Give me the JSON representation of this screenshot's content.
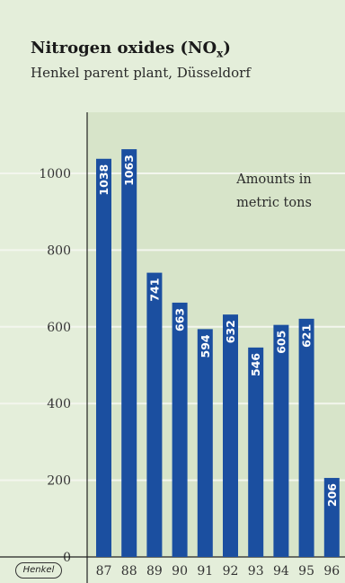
{
  "brand": {
    "logo_text": "Henkel"
  },
  "chart_data": {
    "type": "bar",
    "title": "Nitrogen oxides (NO",
    "title_subscript": "x",
    "title_close": ")",
    "subtitle": "Henkel parent plant, Düsseldorf",
    "annotation_line1": "Amounts in",
    "annotation_line2": "metric tons",
    "categories": [
      "87",
      "88",
      "89",
      "90",
      "91",
      "92",
      "93",
      "94",
      "95",
      "96"
    ],
    "values": [
      1038,
      1063,
      741,
      663,
      594,
      632,
      546,
      605,
      621,
      206
    ],
    "y_ticks": [
      0,
      200,
      400,
      600,
      800,
      1000
    ],
    "ylim": [
      0,
      1200
    ],
    "grid": true,
    "bar_color": "#1b4fa0",
    "label_color": "#ffffff"
  }
}
